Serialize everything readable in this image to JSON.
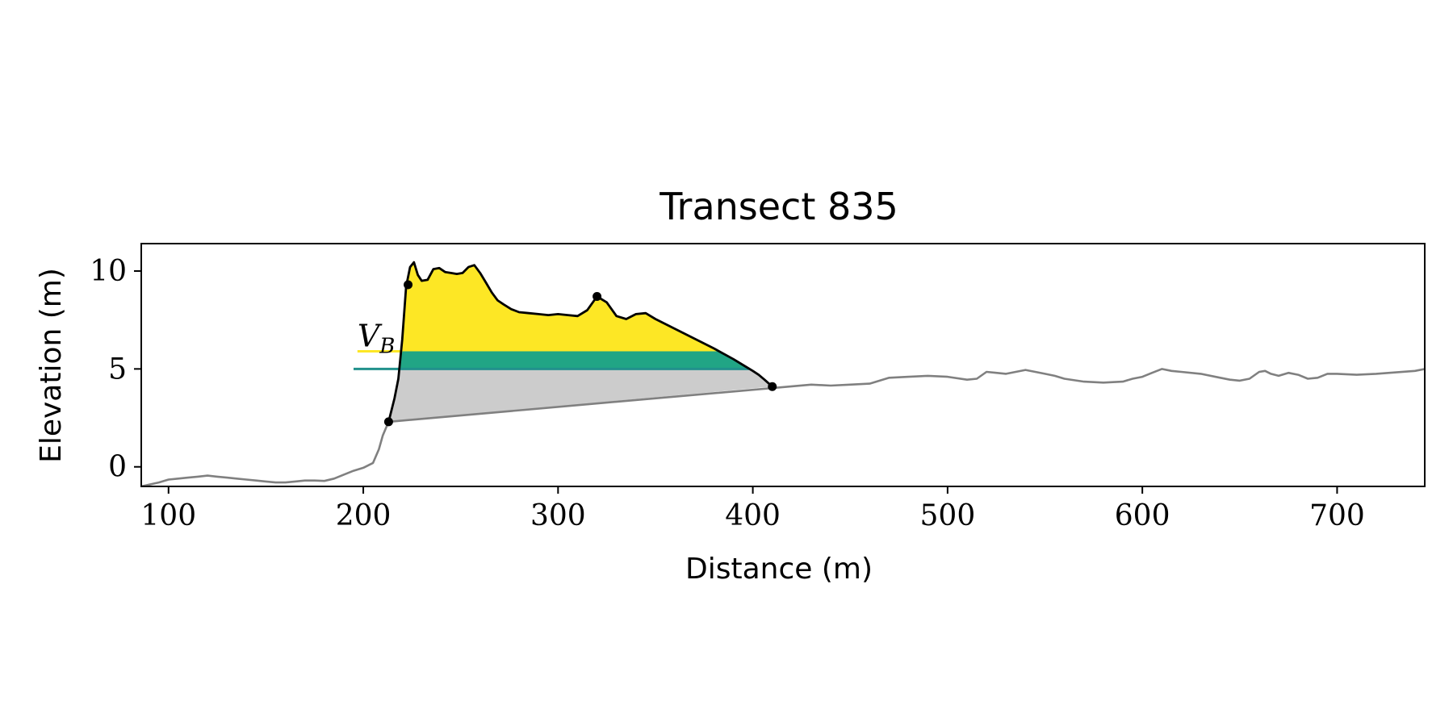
{
  "chart_data": {
    "type": "line",
    "title": "Transect 835",
    "xlabel": "Distance (m)",
    "ylabel": "Elevation (m)",
    "xlim": [
      86,
      745
    ],
    "ylim": [
      -1,
      11.4
    ],
    "xticks": [
      100,
      200,
      300,
      400,
      500,
      600,
      700
    ],
    "yticks": [
      0,
      5,
      10
    ],
    "grid": false,
    "colors": {
      "profile": "#808080",
      "dune": "#000000",
      "volume_above_threshold": "#fde725",
      "threshold_band": "#21a585",
      "threshold_line": "#21918c",
      "base_fill": "#cccccc",
      "points": "#000000"
    },
    "series": [
      {
        "name": "",
        "x": [
          86,
          95,
          100,
          105,
          110,
          115,
          120,
          125,
          130,
          135,
          140,
          145,
          150,
          155,
          160,
          165,
          170,
          175,
          180,
          185,
          190,
          195,
          200,
          203,
          205,
          208,
          210,
          213,
          430,
          440,
          450,
          460,
          470,
          480,
          490,
          500,
          510,
          515,
          520,
          525,
          530,
          540,
          545,
          550,
          555,
          560,
          570,
          580,
          590,
          595,
          600,
          605,
          610,
          615,
          620,
          630,
          640,
          645,
          650,
          655,
          660,
          663,
          666,
          670,
          675,
          680,
          685,
          690,
          695,
          700,
          710,
          720,
          740,
          745
        ],
        "y": [
          -1.0,
          -0.8,
          -0.65,
          -0.6,
          -0.55,
          -0.5,
          -0.45,
          -0.5,
          -0.55,
          -0.6,
          -0.65,
          -0.7,
          -0.75,
          -0.8,
          -0.8,
          -0.75,
          -0.7,
          -0.7,
          -0.72,
          -0.6,
          -0.4,
          -0.2,
          -0.05,
          0.1,
          0.2,
          0.9,
          1.6,
          2.3,
          4.2,
          4.15,
          4.2,
          4.25,
          4.55,
          4.6,
          4.65,
          4.6,
          4.45,
          4.5,
          4.85,
          4.8,
          4.75,
          4.95,
          4.85,
          4.75,
          4.65,
          4.5,
          4.35,
          4.3,
          4.35,
          4.5,
          4.6,
          4.8,
          5.0,
          4.9,
          4.85,
          4.75,
          4.55,
          4.45,
          4.4,
          4.5,
          4.85,
          4.9,
          4.75,
          4.65,
          4.8,
          4.7,
          4.5,
          4.55,
          4.75,
          4.75,
          4.7,
          4.75,
          4.9,
          5.0
        ]
      },
      {
        "name": "",
        "x": [
          213,
          216,
          218,
          220,
          222,
          224,
          226,
          228,
          230,
          233,
          236,
          239,
          242,
          245,
          248,
          251,
          254,
          257,
          260,
          263,
          266,
          269,
          272,
          276,
          280,
          285,
          290,
          295,
          300,
          305,
          310,
          315,
          320,
          325,
          330,
          335,
          340,
          345,
          350,
          360,
          370,
          380,
          390,
          395,
          400,
          403,
          406,
          410
        ],
        "y": [
          2.3,
          3.5,
          4.5,
          6.5,
          9.2,
          10.2,
          10.45,
          9.8,
          9.5,
          9.55,
          10.1,
          10.15,
          9.95,
          9.9,
          9.85,
          9.9,
          10.2,
          10.3,
          9.9,
          9.4,
          8.9,
          8.5,
          8.3,
          8.05,
          7.9,
          7.85,
          7.8,
          7.75,
          7.8,
          7.75,
          7.7,
          8.0,
          8.7,
          8.4,
          7.7,
          7.55,
          7.8,
          7.85,
          7.55,
          7.05,
          6.55,
          6.05,
          5.5,
          5.2,
          4.9,
          4.7,
          4.45,
          4.1
        ]
      }
    ],
    "points": [
      {
        "x": 213,
        "y": 2.3
      },
      {
        "x": 223,
        "y": 9.3
      },
      {
        "x": 320,
        "y": 8.7
      },
      {
        "x": 410,
        "y": 4.1
      }
    ],
    "thresholds": {
      "upper": 5.9,
      "lower": 5.0,
      "upper_line_x": [
        197,
        220
      ],
      "lower_line_x": [
        195,
        398
      ]
    },
    "base_line": {
      "x": [
        213,
        410
      ],
      "y": [
        2.3,
        4.1
      ]
    },
    "annotation": {
      "label": "V",
      "subscript": "B",
      "x": 197,
      "y": 6.15
    }
  }
}
